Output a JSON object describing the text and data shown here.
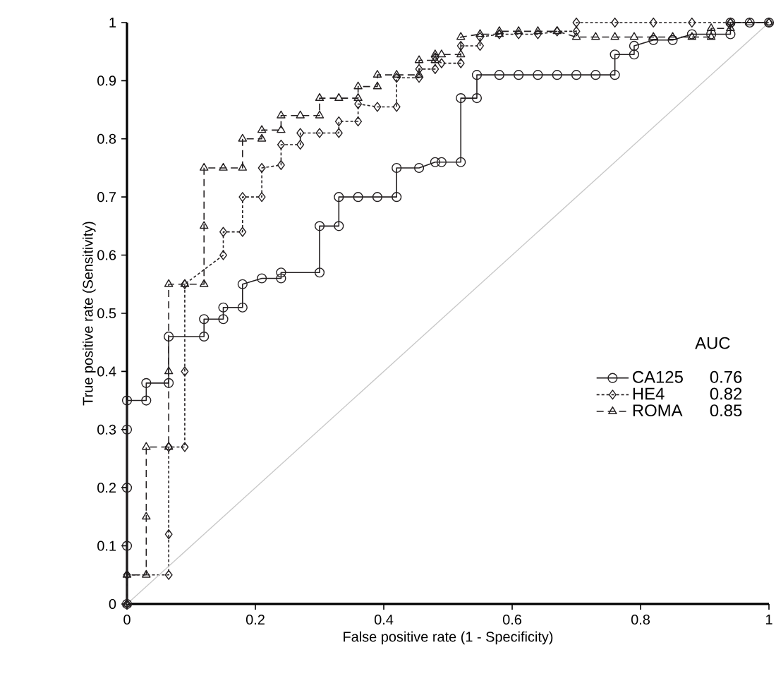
{
  "chart_data": {
    "type": "line",
    "xlabel": "False positive rate (1 - Specificity)",
    "ylabel": "True positive rate (Sensitivity)",
    "legend_title": "AUC",
    "annotations": [
      "0.76",
      "0.82",
      "0.85"
    ],
    "xlim": [
      0,
      1
    ],
    "ylim": [
      0,
      1
    ],
    "xticks": [
      0,
      0.2,
      0.4,
      0.6,
      0.8,
      1
    ],
    "yticks": [
      0,
      0.1,
      0.2,
      0.3,
      0.4,
      0.5,
      0.6,
      0.7,
      0.8,
      0.9,
      1
    ],
    "grid": false,
    "legend": "right",
    "series": [
      {
        "name": "CA125",
        "color": "#231f20",
        "marker": "circle",
        "line_style": "solid",
        "x": [
          0,
          0,
          0,
          0,
          0,
          0.03,
          0.03,
          0.065,
          0.065,
          0.12,
          0.12,
          0.15,
          0.15,
          0.18,
          0.18,
          0.21,
          0.24,
          0.24,
          0.3,
          0.3,
          0.33,
          0.33,
          0.36,
          0.39,
          0.42,
          0.42,
          0.455,
          0.48,
          0.49,
          0.52,
          0.52,
          0.545,
          0.545,
          0.58,
          0.61,
          0.64,
          0.67,
          0.7,
          0.73,
          0.76,
          0.76,
          0.79,
          0.79,
          0.82,
          0.85,
          0.88,
          0.91,
          0.94,
          0.94,
          0.97,
          1
        ],
        "values": [
          0,
          0.1,
          0.2,
          0.3,
          0.35,
          0.35,
          0.38,
          0.38,
          0.46,
          0.46,
          0.49,
          0.49,
          0.51,
          0.51,
          0.55,
          0.56,
          0.56,
          0.57,
          0.57,
          0.65,
          0.65,
          0.7,
          0.7,
          0.7,
          0.7,
          0.75,
          0.75,
          0.76,
          0.76,
          0.76,
          0.87,
          0.87,
          0.91,
          0.91,
          0.91,
          0.91,
          0.91,
          0.91,
          0.91,
          0.91,
          0.945,
          0.945,
          0.96,
          0.97,
          0.97,
          0.98,
          0.98,
          0.98,
          1,
          1,
          1
        ]
      },
      {
        "name": "HE4",
        "color": "#231f20",
        "marker": "diamond",
        "line_style": "dotted",
        "x": [
          0,
          0,
          0.065,
          0.065,
          0.065,
          0.09,
          0.09,
          0.09,
          0.15,
          0.15,
          0.18,
          0.18,
          0.21,
          0.21,
          0.24,
          0.24,
          0.27,
          0.27,
          0.3,
          0.33,
          0.33,
          0.36,
          0.36,
          0.39,
          0.42,
          0.42,
          0.455,
          0.455,
          0.48,
          0.48,
          0.49,
          0.52,
          0.52,
          0.55,
          0.55,
          0.58,
          0.61,
          0.64,
          0.67,
          0.7,
          0.7,
          0.76,
          0.82,
          0.88,
          0.94,
          1
        ],
        "values": [
          0,
          0.05,
          0.05,
          0.12,
          0.27,
          0.27,
          0.4,
          0.55,
          0.6,
          0.64,
          0.64,
          0.7,
          0.7,
          0.75,
          0.755,
          0.79,
          0.79,
          0.81,
          0.81,
          0.81,
          0.83,
          0.83,
          0.86,
          0.855,
          0.855,
          0.905,
          0.905,
          0.92,
          0.92,
          0.94,
          0.93,
          0.93,
          0.96,
          0.96,
          0.975,
          0.98,
          0.98,
          0.98,
          0.985,
          0.985,
          1,
          1,
          1,
          1,
          1,
          1
        ]
      },
      {
        "name": "ROMA",
        "color": "#231f20",
        "marker": "triangle",
        "line_style": "dashed",
        "x": [
          0,
          0,
          0.03,
          0.03,
          0.03,
          0.065,
          0.065,
          0.065,
          0.09,
          0.12,
          0.12,
          0.12,
          0.15,
          0.18,
          0.18,
          0.21,
          0.21,
          0.24,
          0.24,
          0.27,
          0.3,
          0.3,
          0.33,
          0.36,
          0.36,
          0.39,
          0.39,
          0.42,
          0.455,
          0.455,
          0.48,
          0.48,
          0.49,
          0.52,
          0.52,
          0.55,
          0.58,
          0.58,
          0.61,
          0.64,
          0.67,
          0.7,
          0.73,
          0.76,
          0.79,
          0.82,
          0.85,
          0.88,
          0.91,
          0.91,
          0.94,
          0.94,
          0.97,
          1
        ],
        "values": [
          0,
          0.05,
          0.05,
          0.15,
          0.27,
          0.27,
          0.4,
          0.55,
          0.55,
          0.55,
          0.65,
          0.75,
          0.75,
          0.75,
          0.8,
          0.8,
          0.815,
          0.815,
          0.84,
          0.84,
          0.84,
          0.87,
          0.87,
          0.87,
          0.89,
          0.89,
          0.91,
          0.91,
          0.91,
          0.935,
          0.935,
          0.945,
          0.945,
          0.945,
          0.975,
          0.98,
          0.98,
          0.985,
          0.985,
          0.985,
          0.985,
          0.975,
          0.975,
          0.975,
          0.975,
          0.975,
          0.975,
          0.975,
          0.975,
          0.99,
          0.99,
          1,
          1,
          1
        ]
      },
      {
        "color": "#c8c8c8",
        "marker": "none",
        "line_style": "solid",
        "x": [
          0,
          1
        ],
        "values": [
          0,
          1
        ]
      }
    ]
  }
}
